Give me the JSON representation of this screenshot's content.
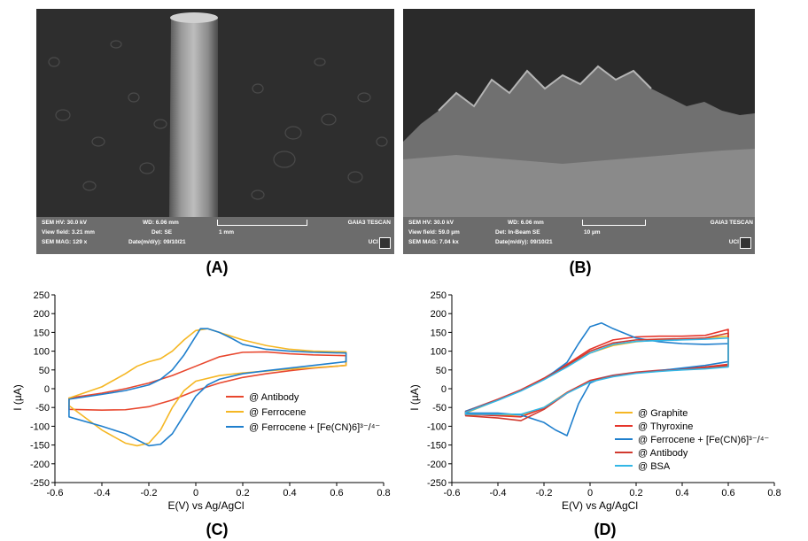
{
  "panels": {
    "a": {
      "label": "(A)"
    },
    "b": {
      "label": "(B)"
    },
    "c": {
      "label": "(C)"
    },
    "d": {
      "label": "(D)"
    }
  },
  "sem_a": {
    "hv": "SEM HV: 30.0 kV",
    "wd": "WD: 6.06 mm",
    "brand": "GAIA3 TESCAN",
    "view_field": "View field: 3.21 mm",
    "det": "Det: SE",
    "scale": "1 mm",
    "mag": "SEM MAG: 129 x",
    "date": "Date(m/d/y): 09/10/21",
    "logo": "UCI"
  },
  "sem_b": {
    "hv": "SEM HV: 30.0 kV",
    "wd": "WD: 6.06 mm",
    "brand": "GAIA3 TESCAN",
    "view_field": "View field: 59.0 µm",
    "det": "Det: In-Beam SE",
    "scale": "10 µm",
    "mag": "SEM MAG: 7.04 kx",
    "date": "Date(m/d/y): 09/10/21",
    "logo": "UCI"
  },
  "chart_data": [
    {
      "id": "C",
      "type": "line",
      "xlabel": "E(V) vs Ag/AgCl",
      "ylabel": "I (µA)",
      "xlim": [
        -0.6,
        0.8
      ],
      "ylim": [
        -250,
        250
      ],
      "xticks": [
        -0.6,
        -0.4,
        -0.2,
        0,
        0.2,
        0.4,
        0.6,
        0.8
      ],
      "yticks": [
        -250,
        -200,
        -150,
        -100,
        -50,
        0,
        50,
        100,
        150,
        200,
        250
      ],
      "legend_position": "lower-right",
      "series": [
        {
          "name": "@ Antibody",
          "color": "#e8472e",
          "x": [
            -0.54,
            -0.4,
            -0.3,
            -0.2,
            -0.1,
            0,
            0.1,
            0.2,
            0.3,
            0.4,
            0.5,
            0.64,
            0.64,
            0.5,
            0.4,
            0.3,
            0.2,
            0.1,
            0,
            -0.1,
            -0.2,
            -0.3,
            -0.4,
            -0.54
          ],
          "y": [
            -25,
            -12,
            0,
            15,
            35,
            60,
            85,
            97,
            98,
            93,
            90,
            88,
            62,
            55,
            48,
            40,
            30,
            15,
            -5,
            -30,
            -48,
            -56,
            -57,
            -55
          ]
        },
        {
          "name": "@ Ferrocene",
          "color": "#f5b724",
          "x": [
            -0.54,
            -0.4,
            -0.3,
            -0.25,
            -0.2,
            -0.15,
            -0.1,
            -0.05,
            0,
            0.05,
            0.1,
            0.2,
            0.3,
            0.4,
            0.5,
            0.64,
            0.64,
            0.5,
            0.4,
            0.3,
            0.2,
            0.1,
            0,
            -0.05,
            -0.1,
            -0.15,
            -0.2,
            -0.25,
            -0.3,
            -0.4,
            -0.54
          ],
          "y": [
            -25,
            5,
            40,
            60,
            72,
            80,
            100,
            130,
            155,
            160,
            150,
            130,
            115,
            105,
            100,
            98,
            62,
            56,
            52,
            47,
            42,
            35,
            20,
            -5,
            -50,
            -110,
            -145,
            -152,
            -145,
            -110,
            -45
          ]
        },
        {
          "name": "@ Ferrocene + [Fe(CN)6]³⁻/⁴⁻",
          "color": "#1f7fcd",
          "x": [
            -0.54,
            -0.4,
            -0.3,
            -0.2,
            -0.15,
            -0.1,
            -0.05,
            0,
            0.02,
            0.05,
            0.1,
            0.15,
            0.2,
            0.3,
            0.4,
            0.5,
            0.64,
            0.64,
            0.5,
            0.4,
            0.3,
            0.2,
            0.1,
            0.05,
            0,
            -0.05,
            -0.1,
            -0.15,
            -0.2,
            -0.3,
            -0.4,
            -0.54
          ],
          "y": [
            -28,
            -15,
            -5,
            10,
            25,
            50,
            90,
            140,
            160,
            160,
            150,
            135,
            118,
            105,
            100,
            97,
            95,
            72,
            62,
            55,
            48,
            40,
            25,
            10,
            -20,
            -70,
            -120,
            -148,
            -152,
            -120,
            -100,
            -75
          ]
        }
      ]
    },
    {
      "id": "D",
      "type": "line",
      "xlabel": "E(V) vs Ag/AgCl",
      "ylabel": "I (µA)",
      "xlim": [
        -0.6,
        0.8
      ],
      "ylim": [
        -250,
        250
      ],
      "xticks": [
        -0.6,
        -0.4,
        -0.2,
        0,
        0.2,
        0.4,
        0.6,
        0.8
      ],
      "yticks": [
        -250,
        -200,
        -150,
        -100,
        -50,
        0,
        50,
        100,
        150,
        200,
        250
      ],
      "legend_position": "lower-right",
      "series": [
        {
          "name": "@ Graphite",
          "color": "#f5b724",
          "x": [
            -0.54,
            -0.4,
            -0.3,
            -0.2,
            -0.1,
            0,
            0.1,
            0.2,
            0.3,
            0.4,
            0.5,
            0.6,
            0.6,
            0.5,
            0.4,
            0.3,
            0.2,
            0.1,
            0,
            -0.1,
            -0.2,
            -0.3,
            -0.4,
            -0.54
          ],
          "y": [
            -65,
            -30,
            -5,
            25,
            60,
            95,
            115,
            125,
            130,
            132,
            135,
            140,
            60,
            55,
            52,
            48,
            42,
            33,
            20,
            -10,
            -50,
            -70,
            -70,
            -70
          ]
        },
        {
          "name": "@ Thyroxine",
          "color": "#e5352b",
          "x": [
            -0.54,
            -0.4,
            -0.3,
            -0.2,
            -0.1,
            0,
            0.1,
            0.2,
            0.3,
            0.4,
            0.5,
            0.6,
            0.6,
            0.5,
            0.4,
            0.3,
            0.2,
            0.1,
            0,
            -0.1,
            -0.2,
            -0.3,
            -0.4,
            -0.54
          ],
          "y": [
            -60,
            -28,
            -3,
            28,
            65,
            105,
            130,
            138,
            140,
            140,
            142,
            158,
            65,
            58,
            53,
            49,
            44,
            36,
            22,
            -10,
            -52,
            -75,
            -72,
            -68
          ]
        },
        {
          "name": "@ Ferrocene + [Fe(CN)6]³⁻/⁴⁻",
          "color": "#1f7fcd",
          "x": [
            -0.54,
            -0.4,
            -0.3,
            -0.2,
            -0.1,
            -0.05,
            0,
            0.05,
            0.1,
            0.2,
            0.3,
            0.4,
            0.5,
            0.6,
            0.6,
            0.5,
            0.4,
            0.3,
            0.2,
            0.1,
            0.05,
            0,
            -0.05,
            -0.1,
            -0.15,
            -0.2,
            -0.3,
            -0.4,
            -0.54
          ],
          "y": [
            -60,
            -30,
            -5,
            25,
            70,
            120,
            165,
            175,
            160,
            135,
            125,
            120,
            118,
            120,
            72,
            62,
            55,
            48,
            42,
            35,
            28,
            15,
            -40,
            -125,
            -110,
            -90,
            -70,
            -65,
            -65
          ]
        },
        {
          "name": "@ Antibody",
          "color": "#d13a2f",
          "x": [
            -0.54,
            -0.4,
            -0.3,
            -0.2,
            -0.1,
            0,
            0.1,
            0.2,
            0.3,
            0.4,
            0.5,
            0.6,
            0.6,
            0.5,
            0.4,
            0.3,
            0.2,
            0.1,
            0,
            -0.1,
            -0.2,
            -0.3,
            -0.4,
            -0.54
          ],
          "y": [
            -62,
            -30,
            -5,
            26,
            62,
            100,
            122,
            130,
            132,
            133,
            135,
            148,
            62,
            56,
            51,
            47,
            42,
            34,
            20,
            -12,
            -55,
            -85,
            -78,
            -72
          ]
        },
        {
          "name": "@ BSA",
          "color": "#33b7e6",
          "x": [
            -0.54,
            -0.4,
            -0.3,
            -0.2,
            -0.1,
            0,
            0.1,
            0.2,
            0.3,
            0.4,
            0.5,
            0.6,
            0.6,
            0.5,
            0.4,
            0.3,
            0.2,
            0.1,
            0,
            -0.1,
            -0.2,
            -0.3,
            -0.4,
            -0.54
          ],
          "y": [
            -63,
            -31,
            -6,
            24,
            58,
            95,
            118,
            126,
            128,
            130,
            132,
            135,
            58,
            53,
            50,
            46,
            41,
            32,
            18,
            -12,
            -50,
            -68,
            -68,
            -68
          ]
        }
      ]
    }
  ]
}
